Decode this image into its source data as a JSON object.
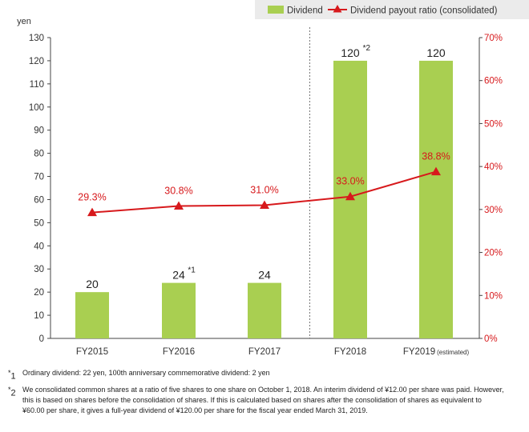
{
  "chart_data": {
    "type": "bar",
    "categories": [
      "FY2015",
      "FY2016",
      "FY2017",
      "FY2018",
      "FY2019"
    ],
    "category_suffixes": [
      "",
      "",
      "",
      "",
      "(estimated)"
    ],
    "series": [
      {
        "name": "Dividend",
        "type": "bar",
        "axis": "left",
        "color": "#a9cf51",
        "values": [
          20,
          24,
          24,
          120,
          120
        ],
        "value_labels": [
          "20",
          "24",
          "24",
          "120",
          "120"
        ],
        "label_notes": [
          "",
          "*1",
          "",
          "*2",
          ""
        ]
      },
      {
        "name": "Dividend payout ratio (consolidated)",
        "type": "line",
        "axis": "right",
        "color": "#d7191c",
        "values": [
          29.3,
          30.8,
          31.0,
          33.0,
          38.8
        ],
        "value_labels": [
          "29.3%",
          "30.8%",
          "31.0%",
          "33.0%",
          "38.8%"
        ]
      }
    ],
    "y_left": {
      "unit": "yen",
      "range": [
        0,
        130
      ],
      "ticks": [
        "0",
        "10",
        "20",
        "30",
        "40",
        "50",
        "60",
        "70",
        "80",
        "90",
        "100",
        "110",
        "120",
        "130"
      ]
    },
    "y_right": {
      "range": [
        0,
        70
      ],
      "ticks": [
        "0%",
        "10%",
        "20%",
        "30%",
        "40%",
        "50%",
        "60%",
        "70%"
      ]
    },
    "divider_after_category": 2,
    "legend_position": "top-right",
    "grid": false
  },
  "footnotes": [
    {
      "mark": "*",
      "num": "1",
      "text": "Ordinary dividend: 22 yen, 100th anniversary commemorative dividend: 2 yen"
    },
    {
      "mark": "*",
      "num": "2",
      "text": "We consolidated common shares at a ratio of five shares to one share on October 1, 2018. An interim dividend of ¥12.00 per share was paid. However, this is based on shares before the consolidation of shares. If this is calculated based on shares after the consolidation of shares as equivalent to ¥60.00 per share, it gives a full-year dividend of ¥120.00 per share for the fiscal year ended March 31, 2019."
    }
  ]
}
